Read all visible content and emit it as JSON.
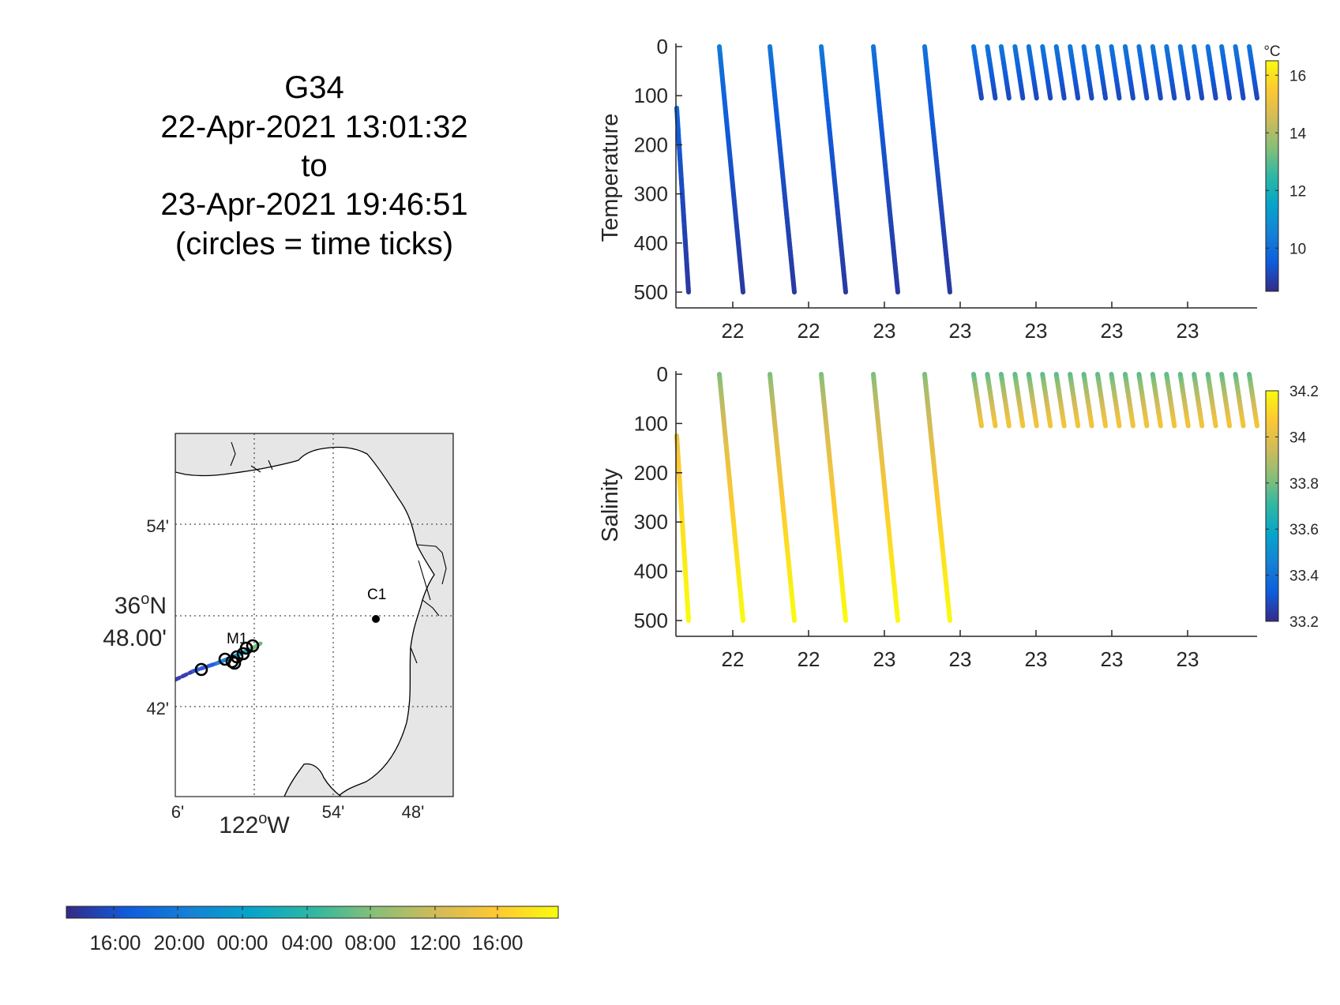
{
  "title": {
    "glider": "G34",
    "start": "22-Apr-2021 13:01:32",
    "to": "to",
    "end": "23-Apr-2021 19:46:51",
    "note": "(circles = time ticks)"
  },
  "colors": {
    "parula": [
      "#352a87",
      "#0f5cdd",
      "#1481d6",
      "#06a4ca",
      "#2eb7a4",
      "#87bf77",
      "#d1bb59",
      "#fec832",
      "#f9fb0e"
    ],
    "axis": "#262626",
    "land": "#e6e6e6",
    "coast": "#000000",
    "grid": "#262626"
  },
  "chart_data": [
    {
      "type": "scatter",
      "name": "temperature-section",
      "ylabel": "Temperature",
      "ydir": "reverse",
      "ylim": [
        0,
        520
      ],
      "yticks": [
        0,
        100,
        200,
        300,
        400,
        500
      ],
      "xticklabels": [
        "22",
        "22",
        "23",
        "23",
        "23",
        "23",
        "23"
      ],
      "colorbar": {
        "unit": "°C",
        "range": [
          8.5,
          16.5
        ],
        "ticks": [
          16,
          14,
          12,
          10
        ]
      },
      "profiles": [
        {
          "depth": [
            125,
            500
          ],
          "value": [
            10.0,
            8.8
          ]
        },
        {
          "depth": [
            0,
            500
          ],
          "value": [
            10.6,
            8.8
          ]
        },
        {
          "depth": [
            0,
            500
          ],
          "value": [
            10.5,
            8.8
          ]
        },
        {
          "depth": [
            0,
            500
          ],
          "value": [
            10.6,
            8.8
          ]
        },
        {
          "depth": [
            0,
            500
          ],
          "value": [
            10.4,
            8.8
          ]
        },
        {
          "depth": [
            0,
            500
          ],
          "value": [
            10.4,
            8.8
          ]
        }
      ],
      "shallow_profiles": {
        "count": 21,
        "depth": [
          0,
          105
        ],
        "value": [
          10.3,
          9.1
        ]
      }
    },
    {
      "type": "scatter",
      "name": "salinity-section",
      "ylabel": "Salinity",
      "ydir": "reverse",
      "ylim": [
        0,
        520
      ],
      "yticks": [
        0,
        100,
        200,
        300,
        400,
        500
      ],
      "xticklabels": [
        "22",
        "22",
        "23",
        "23",
        "23",
        "23",
        "23"
      ],
      "colorbar": {
        "unit": "",
        "range": [
          33.2,
          34.2
        ],
        "ticks": [
          34.2,
          34,
          33.8,
          33.6,
          33.4,
          33.2
        ]
      },
      "profiles": [
        {
          "depth": [
            125,
            500
          ],
          "value": [
            34.0,
            34.2
          ]
        },
        {
          "depth": [
            0,
            500
          ],
          "value": [
            33.78,
            34.2
          ]
        },
        {
          "depth": [
            0,
            500
          ],
          "value": [
            33.78,
            34.2
          ]
        },
        {
          "depth": [
            0,
            500
          ],
          "value": [
            33.78,
            34.2
          ]
        },
        {
          "depth": [
            0,
            500
          ],
          "value": [
            33.78,
            34.2
          ]
        },
        {
          "depth": [
            0,
            500
          ],
          "value": [
            33.78,
            34.2
          ]
        }
      ],
      "shallow_profiles": {
        "count": 21,
        "depth": [
          0,
          105
        ],
        "value": [
          33.75,
          34.05
        ]
      }
    }
  ],
  "map": {
    "lat_ticks": [
      "54'",
      "42'"
    ],
    "lat_main": [
      "36",
      "o",
      "N",
      "48.00'"
    ],
    "lon_ticks": [
      "6'",
      "54'",
      "48'"
    ],
    "lon_main": [
      "122",
      "o",
      "W"
    ],
    "sites": [
      {
        "label": "M1",
        "lon": -122.03,
        "lat": 36.747
      },
      {
        "label": "C1",
        "lon": -121.85,
        "lat": 36.797
      }
    ]
  },
  "time_colorbar": {
    "labels": [
      "16:00",
      "20:00",
      "00:00",
      "04:00",
      "08:00",
      "12:00",
      "16:00"
    ]
  }
}
